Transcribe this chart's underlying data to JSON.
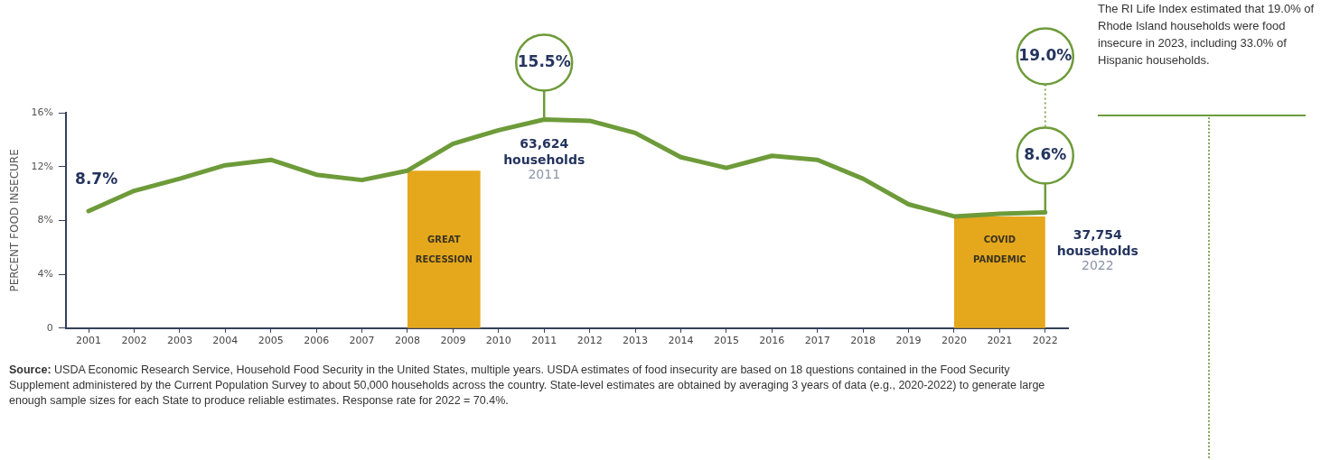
{
  "chart_data": {
    "type": "line",
    "ylabel": "PERCENT FOOD INSECURE",
    "x": [
      2001,
      2002,
      2003,
      2004,
      2005,
      2006,
      2007,
      2008,
      2009,
      2010,
      2011,
      2012,
      2013,
      2014,
      2015,
      2016,
      2017,
      2018,
      2019,
      2020,
      2021,
      2022
    ],
    "values": [
      8.7,
      10.2,
      11.1,
      12.1,
      12.5,
      11.4,
      11.0,
      11.7,
      13.7,
      14.7,
      15.5,
      15.4,
      14.5,
      12.7,
      11.9,
      12.8,
      12.5,
      11.1,
      9.2,
      8.3,
      8.5,
      8.6
    ],
    "color": "#6e9b3a",
    "marker": "none",
    "xlim": [
      2000.5,
      2022.5
    ],
    "xticks": [
      2001,
      2002,
      2003,
      2004,
      2005,
      2006,
      2007,
      2008,
      2009,
      2010,
      2011,
      2012,
      2013,
      2014,
      2015,
      2016,
      2017,
      2018,
      2019,
      2020,
      2021,
      2022
    ],
    "ylim": [
      0,
      16
    ],
    "yticks": [
      0,
      {
        "value": 4,
        "label": "4%"
      },
      {
        "value": 8,
        "label": "8%"
      },
      {
        "value": 12,
        "label": "12%"
      },
      {
        "value": 16,
        "label": "16%"
      }
    ],
    "bands": [
      {
        "axis": "x",
        "from": 2008,
        "to": 2009.6,
        "label": "GREAT RECESSION",
        "color": "#e5a81c"
      },
      {
        "axis": "x",
        "from": 2020,
        "to": 2022,
        "label": "COVID PANDEMIC",
        "color": "#e5a81c"
      }
    ],
    "annotations": [
      {
        "text": "8.7%",
        "x": 2001,
        "y": 8.7
      },
      {
        "text": "15.5%",
        "x": 2011,
        "y": 15.5
      },
      {
        "text": "63,624 households",
        "x": 2011,
        "y": 15.5
      },
      "2011",
      {
        "text": "8.6%",
        "x": 2022,
        "y": 8.6
      },
      "19.0%",
      {
        "text": "37,754 households",
        "x": 2022,
        "y": 8.6
      },
      "2022",
      "The RI Life Index estimated that 19.0% of Rhode Island households were food insecure in 2023, including 33.0% of Hispanic households.",
      "Source: USDA Economic Research Service, Household Food Security in the United States, multiple years. USDA estimates of food insecurity are based on 18 questions contained in the Food Security Supplement administered by the Current Population Survey to about 50,000 households across the country. State-level estimates are obtained by averaging 3 years of data (e.g., 2020-2022) to generate large enough sample sizes for each State to produce reliable estimates. Response rate for 2022 = 70.4%."
    ]
  }
}
